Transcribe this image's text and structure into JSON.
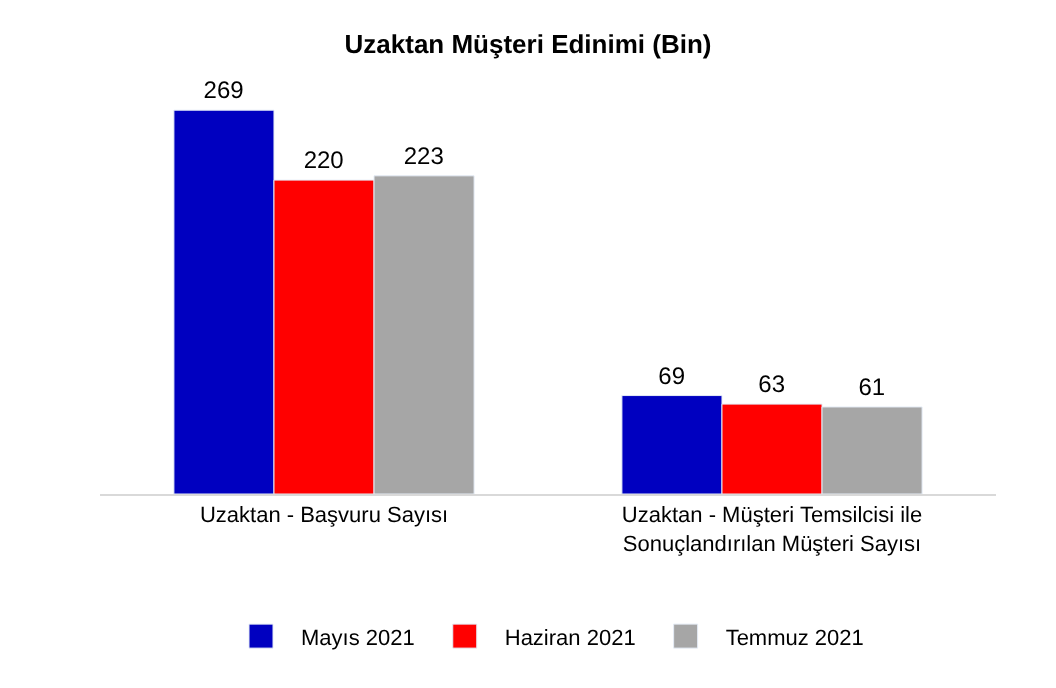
{
  "chart_data": {
    "type": "bar",
    "title": "Uzaktan Müşteri Edinimi (Bin)",
    "categories": [
      "Uzaktan - Başvuru Sayısı",
      "Uzaktan - Müşteri Temsilcisi ile Sonuçlandırılan Müşteri Sayısı"
    ],
    "series": [
      {
        "name": "Mayıs 2021",
        "color": "#0000c0",
        "values": [
          269,
          69
        ]
      },
      {
        "name": "Haziran 2021",
        "color": "#ff0000",
        "values": [
          220,
          63
        ]
      },
      {
        "name": "Temmuz 2021",
        "color": "#a6a6a6",
        "values": [
          223,
          61
        ]
      }
    ],
    "data_labels": true,
    "legend": "bottom"
  }
}
